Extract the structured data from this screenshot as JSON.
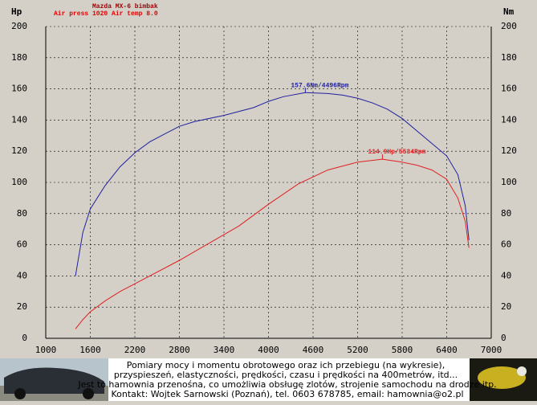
{
  "chart_data": {
    "type": "line",
    "title": "Mazda MX-6 bimbak",
    "subtitle": "Air press   1020  Air temp      8.0",
    "ylabel": "Hp",
    "y2label": "Nm",
    "xlim": [
      1000,
      7000
    ],
    "xticks": [
      1000,
      1600,
      2200,
      2800,
      3400,
      4000,
      4600,
      5200,
      5800,
      6400,
      7000
    ],
    "ylim": [
      0,
      200
    ],
    "yticks": [
      0,
      20,
      40,
      60,
      80,
      100,
      120,
      140,
      160,
      180,
      200
    ],
    "y2lim": [
      0,
      200
    ],
    "y2ticks": [
      0,
      20,
      40,
      60,
      80,
      100,
      120,
      140,
      160,
      180,
      200
    ],
    "grid": true,
    "series": [
      {
        "name": "Nm",
        "color": "#2020a0",
        "axis": "y2",
        "x": [
          1400,
          1500,
          1600,
          1800,
          2000,
          2200,
          2400,
          2600,
          2800,
          3000,
          3400,
          3800,
          4000,
          4200,
          4496,
          4800,
          5000,
          5200,
          5400,
          5600,
          5800,
          6000,
          6200,
          6400,
          6550,
          6650,
          6700
        ],
        "values": [
          40,
          68,
          83,
          98,
          110,
          119,
          126,
          131,
          136,
          139,
          143,
          148,
          152,
          155,
          157.6,
          157,
          156,
          154,
          151,
          147,
          141,
          133,
          125,
          117,
          105,
          85,
          63
        ]
      },
      {
        "name": "Hp",
        "color": "#e02020",
        "x": [
          1400,
          1500,
          1600,
          1800,
          2000,
          2400,
          2800,
          3200,
          3600,
          4000,
          4400,
          4800,
          5200,
          5534,
          5800,
          6000,
          6200,
          6400,
          6550,
          6650,
          6700
        ],
        "values": [
          6,
          12,
          17,
          24,
          30,
          40,
          50,
          61,
          72,
          86,
          99,
          108,
          113,
          114.9,
          113,
          111,
          108,
          102,
          90,
          75,
          58
        ]
      }
    ],
    "annotations": [
      {
        "text": "157.6Nm/4496Rpm",
        "x": 4496,
        "y": 157.6,
        "color": "#2020a0"
      },
      {
        "text": "114.9Hp/5534Rpm",
        "x": 5534,
        "y": 114.9,
        "color": "#e02020"
      }
    ]
  },
  "footer": {
    "lines": [
      "Pomiary mocy i momentu obrotowego oraz ich przebiegu (na wykresie),",
      "przyspieszeń, elastyczności, prędkości, czasu i prędkości na 400metrów, itd...",
      "Jest to hamownia przenośna, co umożliwia obsługę zlotów, strojenie samochodu na drodze itp.",
      "Kontakt: Wojtek Sarnowski (Poznań), tel. 0603 678785, email: hamownia@o2.pl"
    ]
  }
}
